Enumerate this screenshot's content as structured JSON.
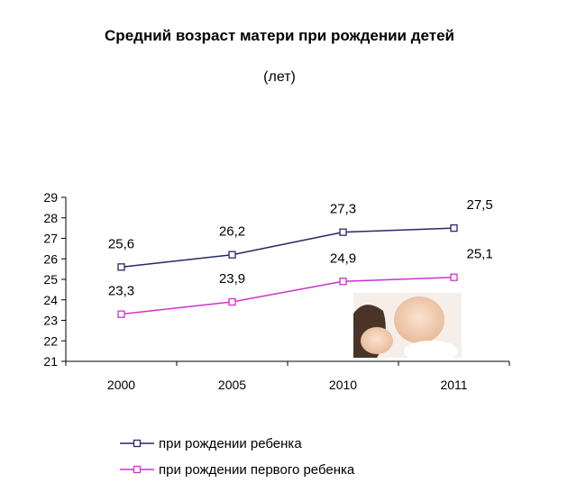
{
  "title": "Средний возраст матери при рождении детей",
  "subtitle": "(лет)",
  "colors": {
    "series_1": "#262866",
    "series_2": "#cc33cc",
    "axis": "#000000"
  },
  "photo": {
    "icon": "mother-and-baby-photo"
  },
  "chart_data": {
    "type": "line",
    "title": "Средний возраст матери при рождении детей",
    "subtitle": "(лет)",
    "categories": [
      "2000",
      "2005",
      "2010",
      "2011"
    ],
    "ylim": [
      21,
      29
    ],
    "yticks": [
      "21",
      "22",
      "23",
      "24",
      "25",
      "26",
      "27",
      "28",
      "29"
    ],
    "grid": false,
    "legend_position": "bottom",
    "series": [
      {
        "name": "при рождении ребенка",
        "values": [
          25.6,
          26.2,
          27.3,
          27.5
        ],
        "labels": [
          "25,6",
          "26,2",
          "27,3",
          "27,5"
        ],
        "color": "#262866",
        "marker": "square"
      },
      {
        "name": "при рождении первого ребенка",
        "values": [
          23.3,
          23.9,
          24.9,
          25.1
        ],
        "labels": [
          "23,3",
          "23,9",
          "24,9",
          "25,1"
        ],
        "color": "#cc33cc",
        "marker": "square"
      }
    ]
  }
}
